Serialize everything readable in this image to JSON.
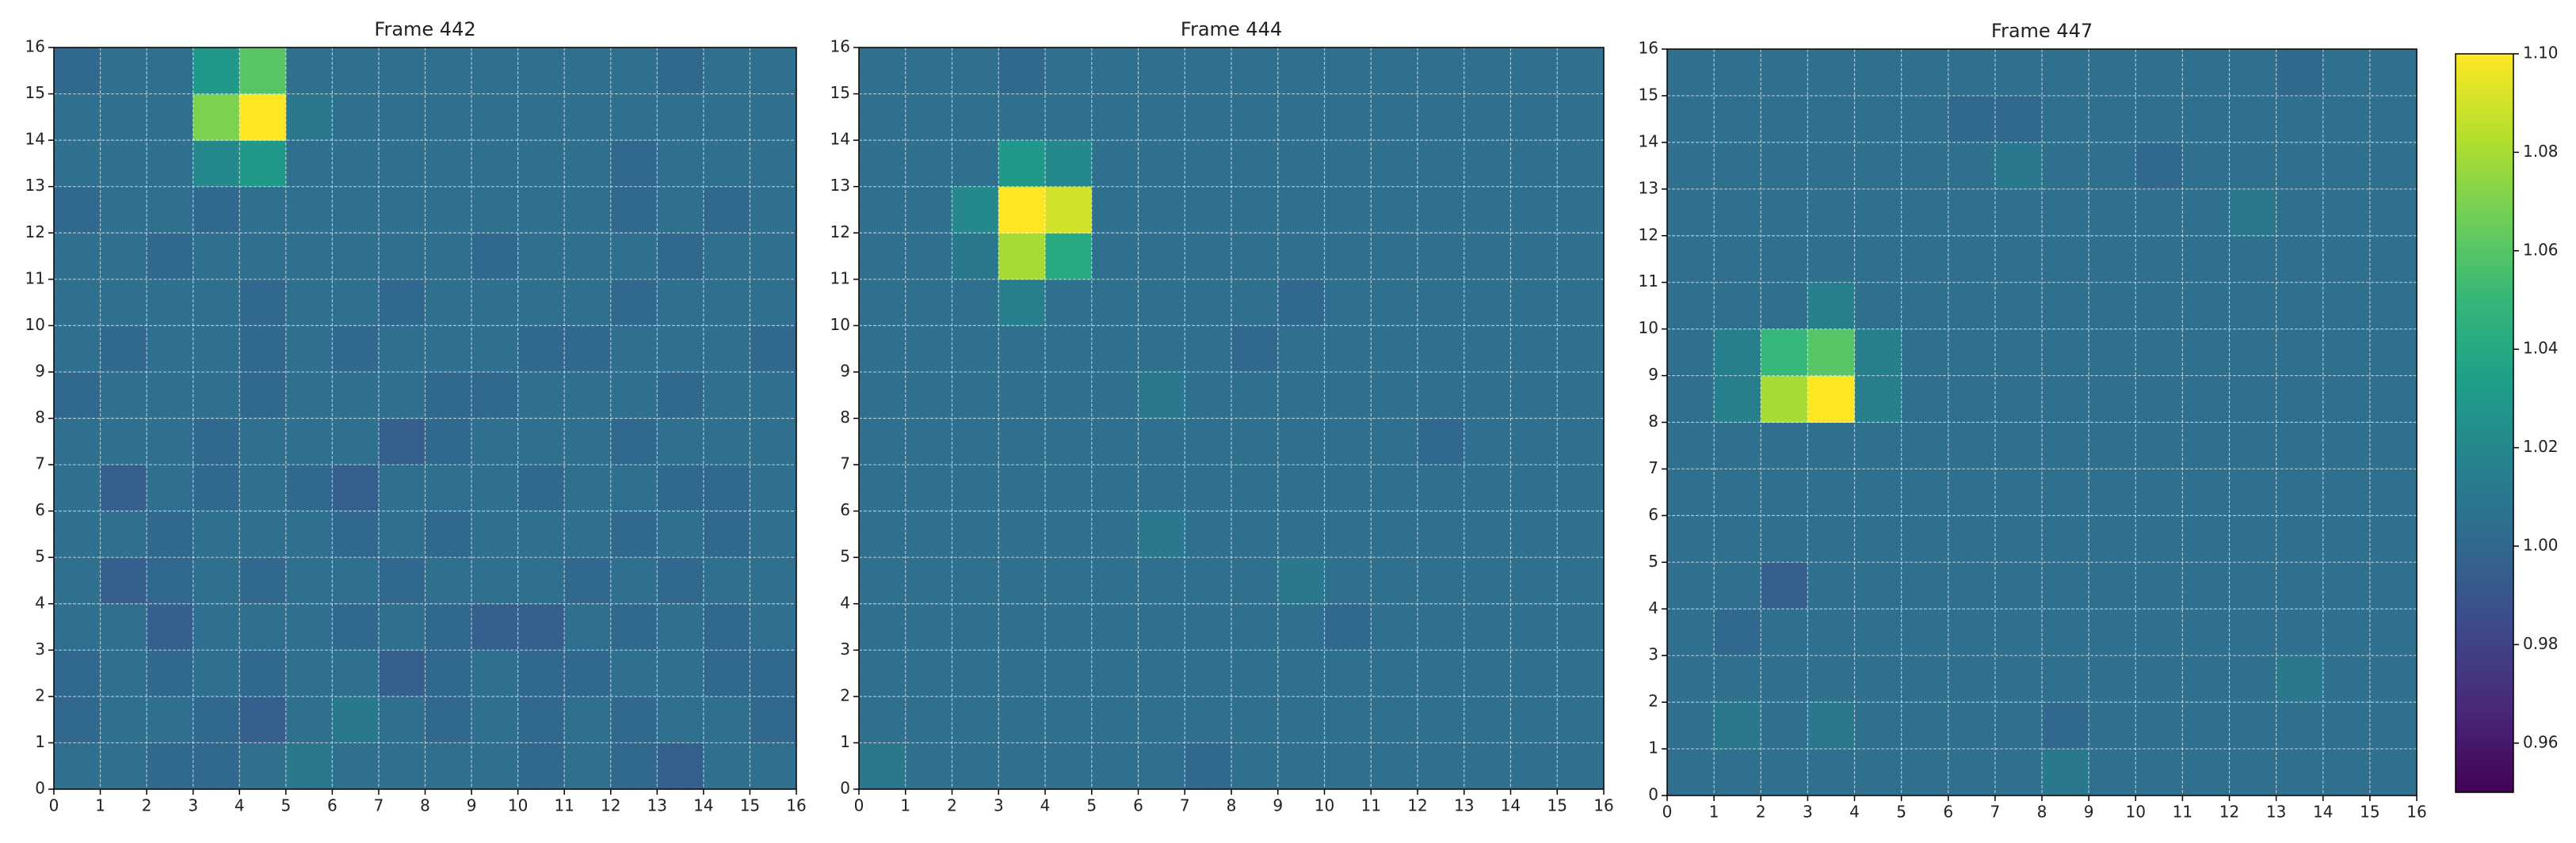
{
  "chart_data": [
    {
      "type": "heatmap",
      "title": "Frame 442",
      "colormap": "viridis",
      "zlim": [
        0.95,
        1.1
      ],
      "xlim": [
        0,
        16
      ],
      "ylim": [
        0,
        16
      ],
      "xticks": [
        0,
        1,
        2,
        3,
        4,
        5,
        6,
        7,
        8,
        9,
        10,
        11,
        12,
        13,
        14,
        15,
        16
      ],
      "yticks": [
        0,
        1,
        2,
        3,
        4,
        5,
        6,
        7,
        8,
        9,
        10,
        11,
        12,
        13,
        14,
        15,
        16
      ],
      "grid": true,
      "z": [
        [
          1.005,
          1.005,
          1.0,
          1.0,
          1.005,
          1.01,
          1.005,
          1.005,
          1.005,
          1.005,
          1.0,
          1.005,
          1.0,
          0.995,
          1.005,
          1.005
        ],
        [
          1.0,
          1.005,
          1.005,
          1.0,
          0.995,
          1.005,
          1.01,
          1.005,
          1.0,
          1.005,
          1.0,
          1.005,
          1.0,
          1.005,
          1.005,
          1.0
        ],
        [
          1.0,
          1.005,
          1.0,
          1.005,
          1.0,
          1.005,
          1.005,
          0.995,
          1.0,
          1.005,
          1.0,
          1.0,
          1.005,
          1.005,
          1.0,
          1.0
        ],
        [
          1.005,
          1.005,
          0.995,
          1.005,
          1.005,
          1.005,
          1.0,
          1.005,
          1.0,
          0.995,
          0.995,
          1.005,
          1.0,
          1.005,
          1.0,
          1.005
        ],
        [
          1.005,
          0.995,
          1.0,
          1.005,
          1.0,
          1.005,
          1.005,
          1.0,
          1.005,
          1.005,
          1.005,
          1.0,
          1.005,
          1.0,
          1.005,
          1.005
        ],
        [
          1.005,
          1.005,
          1.0,
          1.005,
          1.005,
          1.005,
          1.0,
          1.005,
          1.0,
          1.005,
          1.005,
          1.005,
          1.0,
          1.005,
          1.0,
          1.005
        ],
        [
          1.005,
          0.995,
          1.005,
          1.0,
          1.005,
          1.0,
          0.995,
          1.005,
          1.005,
          1.005,
          1.0,
          1.005,
          1.005,
          1.0,
          1.0,
          1.005
        ],
        [
          1.005,
          1.005,
          1.005,
          1.0,
          1.005,
          1.005,
          1.005,
          0.995,
          1.0,
          1.005,
          1.005,
          1.005,
          1.0,
          1.005,
          1.005,
          1.005
        ],
        [
          1.0,
          1.005,
          1.005,
          1.005,
          1.0,
          1.005,
          1.005,
          1.005,
          1.0,
          1.0,
          1.005,
          1.005,
          1.005,
          1.0,
          1.005,
          1.005
        ],
        [
          1.005,
          1.0,
          1.005,
          1.005,
          1.0,
          1.005,
          1.0,
          1.005,
          1.005,
          1.005,
          1.0,
          1.0,
          1.005,
          1.005,
          1.005,
          1.0
        ],
        [
          1.005,
          1.005,
          1.005,
          1.005,
          1.0,
          1.005,
          1.005,
          1.0,
          1.005,
          1.005,
          1.005,
          1.005,
          1.0,
          1.005,
          1.005,
          1.005
        ],
        [
          1.005,
          1.005,
          1.0,
          1.005,
          1.005,
          1.005,
          1.005,
          1.005,
          1.005,
          1.0,
          1.005,
          1.005,
          1.005,
          1.0,
          1.005,
          1.005
        ],
        [
          1.0,
          1.005,
          1.005,
          1.0,
          1.005,
          1.005,
          1.005,
          1.005,
          1.005,
          1.005,
          1.005,
          1.005,
          1.0,
          1.005,
          1.0,
          1.005
        ],
        [
          1.005,
          1.005,
          1.005,
          1.02,
          1.03,
          1.005,
          1.005,
          1.005,
          1.005,
          1.005,
          1.005,
          1.005,
          1.0,
          1.005,
          1.005,
          1.005
        ],
        [
          1.005,
          1.005,
          1.005,
          1.07,
          1.1,
          1.01,
          1.005,
          1.005,
          1.005,
          1.005,
          1.005,
          1.005,
          1.005,
          1.005,
          1.005,
          1.005
        ],
        [
          1.0,
          1.005,
          1.005,
          1.03,
          1.06,
          1.005,
          1.005,
          1.005,
          1.005,
          1.005,
          1.005,
          1.005,
          1.005,
          1.0,
          1.005,
          1.005
        ]
      ]
    },
    {
      "type": "heatmap",
      "title": "Frame 444",
      "colormap": "viridis",
      "zlim": [
        0.95,
        1.1
      ],
      "xlim": [
        0,
        16
      ],
      "ylim": [
        0,
        16
      ],
      "xticks": [
        0,
        1,
        2,
        3,
        4,
        5,
        6,
        7,
        8,
        9,
        10,
        11,
        12,
        13,
        14,
        15,
        16
      ],
      "yticks": [
        0,
        1,
        2,
        3,
        4,
        5,
        6,
        7,
        8,
        9,
        10,
        11,
        12,
        13,
        14,
        15,
        16
      ],
      "grid": true,
      "z": [
        [
          1.01,
          1.005,
          1.005,
          1.005,
          1.005,
          1.005,
          1.005,
          1.0,
          1.005,
          1.005,
          1.005,
          1.005,
          1.005,
          1.005,
          1.005,
          1.005
        ],
        [
          1.005,
          1.005,
          1.005,
          1.005,
          1.005,
          1.005,
          1.005,
          1.005,
          1.005,
          1.005,
          1.005,
          1.005,
          1.005,
          1.005,
          1.005,
          1.005
        ],
        [
          1.005,
          1.005,
          1.005,
          1.005,
          1.005,
          1.005,
          1.005,
          1.005,
          1.005,
          1.005,
          1.005,
          1.005,
          1.005,
          1.005,
          1.005,
          1.005
        ],
        [
          1.005,
          1.005,
          1.005,
          1.005,
          1.005,
          1.005,
          1.005,
          1.005,
          1.005,
          1.005,
          1.0,
          1.005,
          1.005,
          1.005,
          1.005,
          1.005
        ],
        [
          1.005,
          1.005,
          1.005,
          1.005,
          1.005,
          1.005,
          1.005,
          1.005,
          1.005,
          1.01,
          1.005,
          1.005,
          1.005,
          1.005,
          1.005,
          1.005
        ],
        [
          1.005,
          1.005,
          1.005,
          1.005,
          1.005,
          1.005,
          1.01,
          1.005,
          1.005,
          1.005,
          1.005,
          1.005,
          1.005,
          1.005,
          1.005,
          1.005
        ],
        [
          1.005,
          1.005,
          1.005,
          1.005,
          1.005,
          1.005,
          1.005,
          1.005,
          1.005,
          1.005,
          1.005,
          1.005,
          1.005,
          1.005,
          1.005,
          1.005
        ],
        [
          1.005,
          1.005,
          1.005,
          1.005,
          1.005,
          1.005,
          1.005,
          1.005,
          1.005,
          1.005,
          1.005,
          1.005,
          1.0,
          1.005,
          1.005,
          1.005
        ],
        [
          1.005,
          1.005,
          1.005,
          1.005,
          1.005,
          1.005,
          1.01,
          1.005,
          1.005,
          1.005,
          1.005,
          1.005,
          1.005,
          1.005,
          1.005,
          1.005
        ],
        [
          1.005,
          1.005,
          1.005,
          1.005,
          1.005,
          1.005,
          1.005,
          1.005,
          1.0,
          1.005,
          1.005,
          1.005,
          1.005,
          1.005,
          1.005,
          1.005
        ],
        [
          1.005,
          1.005,
          1.005,
          1.015,
          1.005,
          1.005,
          1.005,
          1.005,
          1.005,
          1.0,
          1.005,
          1.005,
          1.005,
          1.005,
          1.005,
          1.005
        ],
        [
          1.005,
          1.005,
          1.01,
          1.08,
          1.04,
          1.005,
          1.005,
          1.005,
          1.005,
          1.005,
          1.005,
          1.005,
          1.005,
          1.005,
          1.005,
          1.005
        ],
        [
          1.005,
          1.005,
          1.02,
          1.1,
          1.09,
          1.005,
          1.005,
          1.005,
          1.005,
          1.005,
          1.005,
          1.005,
          1.005,
          1.005,
          1.005,
          1.005
        ],
        [
          1.005,
          1.005,
          1.005,
          1.03,
          1.02,
          1.005,
          1.005,
          1.005,
          1.005,
          1.005,
          1.005,
          1.005,
          1.005,
          1.005,
          1.005,
          1.005
        ],
        [
          1.005,
          1.005,
          1.005,
          1.005,
          1.005,
          1.005,
          1.005,
          1.005,
          1.005,
          1.005,
          1.005,
          1.005,
          1.005,
          1.005,
          1.005,
          1.005
        ],
        [
          1.005,
          1.005,
          1.005,
          1.0,
          1.005,
          1.005,
          1.005,
          1.005,
          1.005,
          1.005,
          1.005,
          1.005,
          1.005,
          1.005,
          1.005,
          1.005
        ]
      ]
    },
    {
      "type": "heatmap",
      "title": "Frame 447",
      "colormap": "viridis",
      "zlim": [
        0.95,
        1.1
      ],
      "xlim": [
        0,
        16
      ],
      "ylim": [
        0,
        16
      ],
      "xticks": [
        0,
        1,
        2,
        3,
        4,
        5,
        6,
        7,
        8,
        9,
        10,
        11,
        12,
        13,
        14,
        15,
        16
      ],
      "yticks": [
        0,
        1,
        2,
        3,
        4,
        5,
        6,
        7,
        8,
        9,
        10,
        11,
        12,
        13,
        14,
        15,
        16
      ],
      "grid": true,
      "z": [
        [
          1.005,
          1.005,
          1.005,
          1.005,
          1.005,
          1.005,
          1.005,
          1.005,
          1.01,
          1.005,
          1.005,
          1.005,
          1.005,
          1.005,
          1.005,
          1.005
        ],
        [
          1.005,
          1.01,
          1.005,
          1.01,
          1.005,
          1.005,
          1.005,
          1.005,
          1.0,
          1.005,
          1.005,
          1.005,
          1.005,
          1.005,
          1.005,
          1.005
        ],
        [
          1.005,
          1.005,
          1.005,
          1.005,
          1.005,
          1.005,
          1.005,
          1.005,
          1.005,
          1.005,
          1.005,
          1.005,
          1.005,
          1.01,
          1.005,
          1.005
        ],
        [
          1.005,
          1.0,
          1.005,
          1.005,
          1.005,
          1.005,
          1.005,
          1.005,
          1.005,
          1.005,
          1.005,
          1.005,
          1.005,
          1.005,
          1.005,
          1.005
        ],
        [
          1.005,
          1.005,
          0.995,
          1.005,
          1.005,
          1.005,
          1.005,
          1.005,
          1.005,
          1.005,
          1.005,
          1.005,
          1.005,
          1.005,
          1.005,
          1.005
        ],
        [
          1.005,
          1.005,
          1.005,
          1.005,
          1.005,
          1.005,
          1.005,
          1.005,
          1.005,
          1.005,
          1.005,
          1.005,
          1.005,
          1.005,
          1.005,
          1.005
        ],
        [
          1.005,
          1.005,
          1.005,
          1.005,
          1.005,
          1.005,
          1.005,
          1.005,
          1.005,
          1.005,
          1.005,
          1.005,
          1.005,
          1.005,
          1.005,
          1.005
        ],
        [
          1.005,
          1.005,
          1.005,
          1.005,
          1.005,
          1.005,
          1.005,
          1.005,
          1.005,
          1.005,
          1.005,
          1.005,
          1.005,
          1.005,
          1.005,
          1.005
        ],
        [
          1.005,
          1.015,
          1.08,
          1.1,
          1.015,
          1.005,
          1.005,
          1.005,
          1.005,
          1.005,
          1.005,
          1.005,
          1.005,
          1.005,
          1.005,
          1.005
        ],
        [
          1.005,
          1.015,
          1.05,
          1.06,
          1.015,
          1.005,
          1.005,
          1.005,
          1.005,
          1.005,
          1.005,
          1.005,
          1.005,
          1.005,
          1.005,
          1.005
        ],
        [
          1.005,
          1.005,
          1.005,
          1.015,
          1.005,
          1.005,
          1.005,
          1.005,
          1.005,
          1.005,
          1.005,
          1.005,
          1.005,
          1.005,
          1.005,
          1.005
        ],
        [
          1.005,
          1.005,
          1.005,
          1.005,
          1.005,
          1.005,
          1.005,
          1.005,
          1.005,
          1.005,
          1.005,
          1.005,
          1.005,
          1.005,
          1.005,
          1.005
        ],
        [
          1.005,
          1.005,
          1.005,
          1.005,
          1.005,
          1.005,
          1.005,
          1.005,
          1.005,
          1.005,
          1.005,
          1.005,
          1.01,
          1.005,
          1.005,
          1.005
        ],
        [
          1.005,
          1.005,
          1.005,
          1.005,
          1.005,
          1.005,
          1.005,
          1.01,
          1.005,
          1.005,
          1.0,
          1.005,
          1.005,
          1.005,
          1.005,
          1.005
        ],
        [
          1.005,
          1.005,
          1.005,
          1.005,
          1.005,
          1.005,
          1.0,
          1.0,
          1.005,
          1.005,
          1.005,
          1.005,
          1.005,
          1.005,
          1.005,
          1.005
        ],
        [
          1.005,
          1.005,
          1.005,
          1.005,
          1.005,
          1.005,
          1.005,
          1.005,
          1.005,
          1.005,
          1.005,
          1.005,
          1.005,
          1.0,
          1.005,
          1.005
        ]
      ]
    },
    {
      "type": "colorbar",
      "colormap": "viridis",
      "zlim": [
        0.95,
        1.1
      ],
      "ticks": [
        0.96,
        0.98,
        {
          "value": 1,
          "label": "1.00"
        },
        1.02,
        1.04,
        1.06,
        1.08,
        {
          "value": 1.1,
          "label": "1.10"
        }
      ]
    }
  ]
}
